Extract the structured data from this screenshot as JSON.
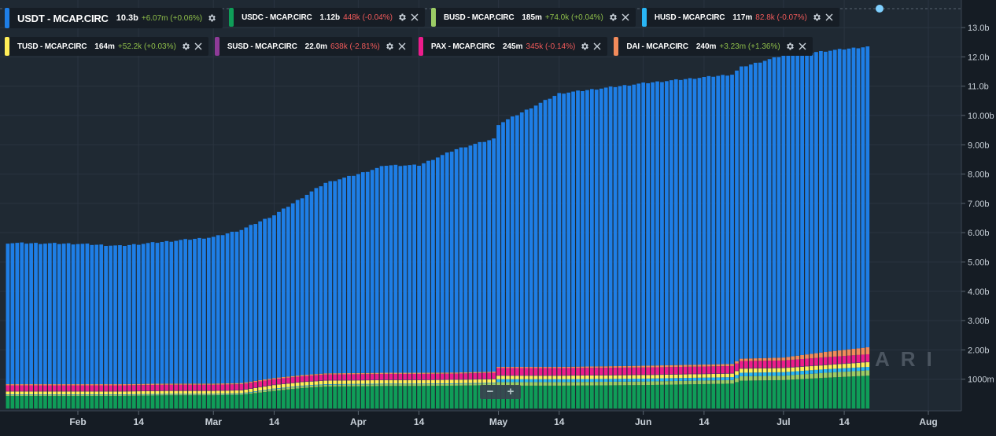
{
  "legend": {
    "rows": [
      [
        {
          "name": "USDT - MCAP.CIRC",
          "value": "10.3b",
          "change": "+6.07m (+0.06%)",
          "dir": "pos",
          "color": "#1e7ee6"
        },
        {
          "name": "USDC - MCAP.CIRC",
          "value": "1.12b",
          "change": "448k (-0.04%)",
          "dir": "neg",
          "color": "#0f9d58"
        },
        {
          "name": "BUSD - MCAP.CIRC",
          "value": "185m",
          "change": "+74.0k (+0.04%)",
          "dir": "pos",
          "color": "#9ccc65"
        },
        {
          "name": "HUSD - MCAP.CIRC",
          "value": "117m",
          "change": "82.8k (-0.07%)",
          "dir": "neg",
          "color": "#29b6f6"
        }
      ],
      [
        {
          "name": "TUSD - MCAP.CIRC",
          "value": "164m",
          "change": "+52.2k (+0.03%)",
          "dir": "pos",
          "color": "#ffee58"
        },
        {
          "name": "SUSD - MCAP.CIRC",
          "value": "22.0m",
          "change": "638k (-2.81%)",
          "dir": "neg",
          "color": "#8e3b97"
        },
        {
          "name": "PAX - MCAP.CIRC",
          "value": "245m",
          "change": "345k (-0.14%)",
          "dir": "neg",
          "color": "#ec1c8c"
        },
        {
          "name": "DAI - MCAP.CIRC",
          "value": "240m",
          "change": "+3.23m (+1.36%)",
          "dir": "pos",
          "color": "#f28b5b"
        }
      ]
    ]
  },
  "zoom": {
    "minus": "−",
    "plus": "+"
  },
  "watermark": "ARI",
  "chart_data": {
    "type": "bar",
    "stacked": true,
    "x_start": "2020-01-17",
    "x_end": "2020-07-19",
    "x_ticks": [
      "Feb",
      "14",
      "Mar",
      "14",
      "Apr",
      "14",
      "May",
      "14",
      "Jun",
      "14",
      "Jul",
      "14",
      "Aug"
    ],
    "x_tick_dates": [
      "2020-02-01",
      "2020-02-14",
      "2020-03-01",
      "2020-03-14",
      "2020-04-01",
      "2020-04-14",
      "2020-05-01",
      "2020-05-14",
      "2020-06-01",
      "2020-06-14",
      "2020-07-01",
      "2020-07-14",
      "2020-08-01"
    ],
    "y_ticks": [
      "1000m",
      "2.00b",
      "3.00b",
      "4.00b",
      "5.00b",
      "6.00b",
      "7.00b",
      "8.00b",
      "9.00b",
      "10.00b",
      "11.0b",
      "12.0b",
      "13.0b"
    ],
    "y_tick_values": [
      1,
      2,
      3,
      4,
      5,
      6,
      7,
      8,
      9,
      10,
      11,
      12,
      13
    ],
    "ylim": [
      0,
      13.3
    ],
    "y_unit": "billions USD",
    "grid": true,
    "legend_position": "top-left",
    "stack_order": [
      "USDC",
      "BUSD",
      "HUSD",
      "TUSD",
      "SUSD",
      "PAX",
      "DAI",
      "USDT"
    ],
    "series_colors": {
      "USDC": "#0f9d58",
      "BUSD": "#9ccc65",
      "HUSD": "#29b6f6",
      "TUSD": "#ffee58",
      "SUSD": "#8e3b97",
      "PAX": "#ec1c8c",
      "DAI": "#f28b5b",
      "USDT": "#1e7ee6"
    },
    "stack_tops_keyframes": [
      {
        "date": "2020-01-17",
        "USDC": 0.43,
        "BUSD": 0.46,
        "HUSD": 0.48,
        "TUSD": 0.58,
        "SUSD": 0.6,
        "PAX": 0.79,
        "DAI": 0.83,
        "USDT": 5.65
      },
      {
        "date": "2020-02-01",
        "USDC": 0.43,
        "BUSD": 0.46,
        "HUSD": 0.48,
        "TUSD": 0.58,
        "SUSD": 0.6,
        "PAX": 0.79,
        "DAI": 0.83,
        "USDT": 5.62
      },
      {
        "date": "2020-02-10",
        "USDC": 0.43,
        "BUSD": 0.46,
        "HUSD": 0.48,
        "TUSD": 0.58,
        "SUSD": 0.6,
        "PAX": 0.79,
        "DAI": 0.83,
        "USDT": 5.55
      },
      {
        "date": "2020-02-20",
        "USDC": 0.45,
        "BUSD": 0.48,
        "HUSD": 0.5,
        "TUSD": 0.6,
        "SUSD": 0.62,
        "PAX": 0.81,
        "DAI": 0.85,
        "USDT": 5.7
      },
      {
        "date": "2020-03-01",
        "USDC": 0.45,
        "BUSD": 0.48,
        "HUSD": 0.5,
        "TUSD": 0.6,
        "SUSD": 0.62,
        "PAX": 0.81,
        "DAI": 0.85,
        "USDT": 5.85
      },
      {
        "date": "2020-03-07",
        "USDC": 0.47,
        "BUSD": 0.5,
        "HUSD": 0.52,
        "TUSD": 0.62,
        "SUSD": 0.64,
        "PAX": 0.83,
        "DAI": 0.87,
        "USDT": 6.1
      },
      {
        "date": "2020-03-14",
        "USDC": 0.6,
        "BUSD": 0.66,
        "HUSD": 0.68,
        "TUSD": 0.8,
        "SUSD": 0.82,
        "PAX": 1.0,
        "DAI": 1.04,
        "USDT": 6.6
      },
      {
        "date": "2020-03-20",
        "USDC": 0.7,
        "BUSD": 0.76,
        "HUSD": 0.78,
        "TUSD": 0.9,
        "SUSD": 0.92,
        "PAX": 1.1,
        "DAI": 1.14,
        "USDT": 7.2
      },
      {
        "date": "2020-03-25",
        "USDC": 0.75,
        "BUSD": 0.81,
        "HUSD": 0.83,
        "TUSD": 0.95,
        "SUSD": 0.97,
        "PAX": 1.16,
        "DAI": 1.2,
        "USDT": 7.7
      },
      {
        "date": "2020-04-01",
        "USDC": 0.76,
        "BUSD": 0.82,
        "HUSD": 0.84,
        "TUSD": 0.96,
        "SUSD": 0.98,
        "PAX": 1.17,
        "DAI": 1.21,
        "USDT": 8.0
      },
      {
        "date": "2020-04-07",
        "USDC": 0.77,
        "BUSD": 0.83,
        "HUSD": 0.85,
        "TUSD": 0.97,
        "SUSD": 0.99,
        "PAX": 1.18,
        "DAI": 1.22,
        "USDT": 8.3
      },
      {
        "date": "2020-04-14",
        "USDC": 0.77,
        "BUSD": 0.83,
        "HUSD": 0.85,
        "TUSD": 0.97,
        "SUSD": 0.99,
        "PAX": 1.18,
        "DAI": 1.22,
        "USDT": 8.3
      },
      {
        "date": "2020-04-22",
        "USDC": 0.78,
        "BUSD": 0.84,
        "HUSD": 0.86,
        "TUSD": 0.98,
        "SUSD": 1.0,
        "PAX": 1.19,
        "DAI": 1.23,
        "USDT": 8.85
      },
      {
        "date": "2020-04-30",
        "USDC": 0.8,
        "BUSD": 0.86,
        "HUSD": 0.88,
        "TUSD": 1.0,
        "SUSD": 1.02,
        "PAX": 1.22,
        "DAI": 1.26,
        "USDT": 9.2
      },
      {
        "date": "2020-05-01",
        "USDC": 0.78,
        "BUSD": 0.9,
        "HUSD": 1.0,
        "TUSD": 1.12,
        "SUSD": 1.14,
        "PAX": 1.38,
        "DAI": 1.42,
        "USDT": 9.7
      },
      {
        "date": "2020-05-14",
        "USDC": 0.78,
        "BUSD": 0.9,
        "HUSD": 1.0,
        "TUSD": 1.12,
        "SUSD": 1.14,
        "PAX": 1.38,
        "DAI": 1.42,
        "USDT": 10.75
      },
      {
        "date": "2020-06-01",
        "USDC": 0.8,
        "BUSD": 0.92,
        "HUSD": 1.02,
        "TUSD": 1.14,
        "SUSD": 1.16,
        "PAX": 1.4,
        "DAI": 1.46,
        "USDT": 11.1
      },
      {
        "date": "2020-06-20",
        "USDC": 0.85,
        "BUSD": 0.97,
        "HUSD": 1.07,
        "TUSD": 1.19,
        "SUSD": 1.21,
        "PAX": 1.45,
        "DAI": 1.52,
        "USDT": 11.4
      },
      {
        "date": "2020-06-22",
        "USDC": 0.95,
        "BUSD": 1.1,
        "HUSD": 1.22,
        "TUSD": 1.36,
        "SUSD": 1.38,
        "PAX": 1.62,
        "DAI": 1.7,
        "USDT": 11.65
      },
      {
        "date": "2020-07-01",
        "USDC": 0.97,
        "BUSD": 1.12,
        "HUSD": 1.24,
        "TUSD": 1.38,
        "SUSD": 1.4,
        "PAX": 1.64,
        "DAI": 1.74,
        "USDT": 12.05
      },
      {
        "date": "2020-07-10",
        "USDC": 1.05,
        "BUSD": 1.22,
        "HUSD": 1.34,
        "TUSD": 1.48,
        "SUSD": 1.5,
        "PAX": 1.75,
        "DAI": 1.93,
        "USDT": 12.2
      },
      {
        "date": "2020-07-19",
        "USDC": 1.12,
        "BUSD": 1.3,
        "HUSD": 1.42,
        "TUSD": 1.58,
        "SUSD": 1.6,
        "PAX": 1.85,
        "DAI": 2.09,
        "USDT": 12.35
      }
    ]
  }
}
